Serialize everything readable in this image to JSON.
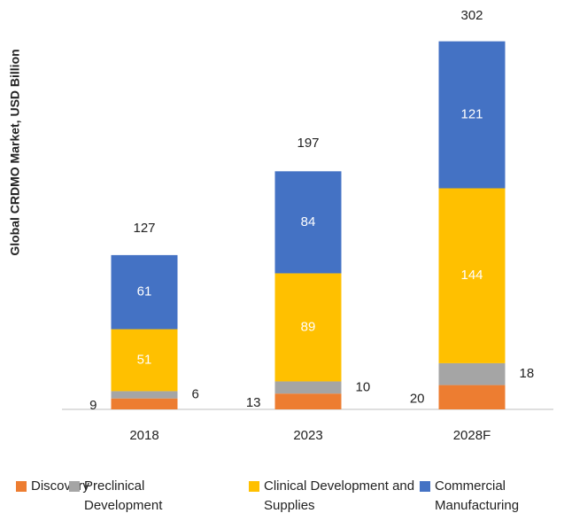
{
  "chart_data": {
    "type": "stacked_bar",
    "y_axis_label": "Global CRDMO Market, USD Billion",
    "categories": [
      "2018",
      "2023",
      "2028F"
    ],
    "series": [
      {
        "name": "Discovery",
        "color": "#ED7D31",
        "values": [
          9,
          13,
          20
        ]
      },
      {
        "name": "Preclinical Development",
        "color": "#A5A5A5",
        "values": [
          6,
          10,
          18
        ]
      },
      {
        "name": "Clinical Development and Supplies",
        "color": "#FFC000",
        "values": [
          51,
          89,
          144
        ]
      },
      {
        "name": "Commercial Manufacturing",
        "color": "#4472C4",
        "values": [
          61,
          84,
          121
        ]
      }
    ],
    "totals": [
      127,
      197,
      302
    ],
    "legend_position": "bottom"
  }
}
